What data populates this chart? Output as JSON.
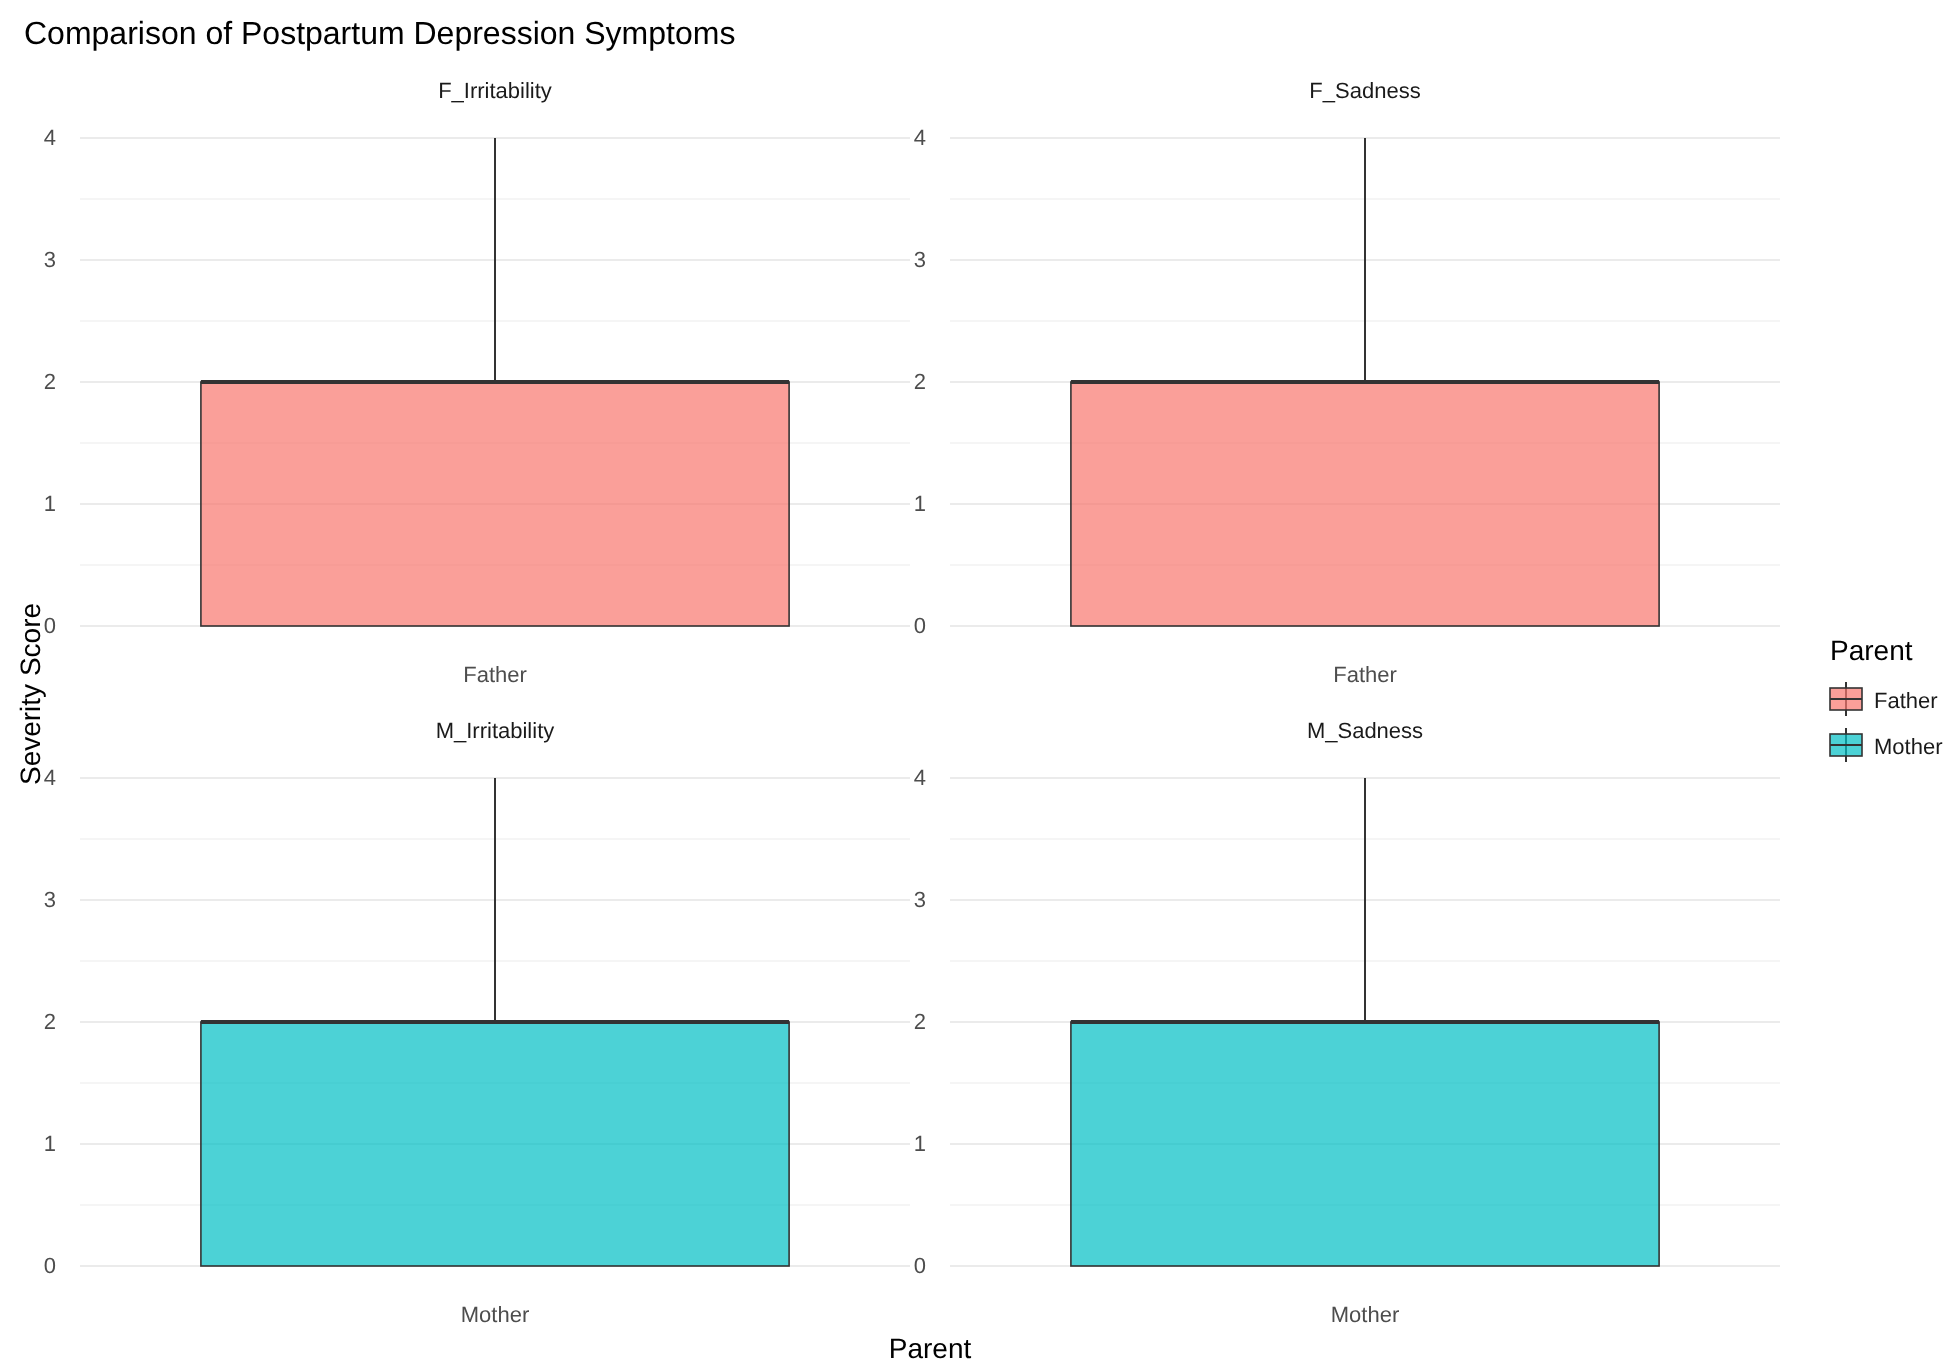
{
  "chart_data": [
    {
      "type": "box",
      "title": "Comparison of Postpartum Depression Symptoms",
      "subtitle": "F_Irritability",
      "ylabel": "Severity Score",
      "legend_title": "Parent",
      "legend": "right",
      "categories": [
        "Father"
      ],
      "series": [
        {
          "name": "Father",
          "color": "#f8766d",
          "boxes": [
            {
              "low": 0,
              "q1": 0,
              "median": 2,
              "q3": 2,
              "high": 4
            }
          ]
        }
      ],
      "ylim": [
        0,
        4
      ],
      "yticks": [
        0,
        {
          "value": 0.5,
          "label": null
        },
        1,
        {
          "value": 1.5,
          "label": null
        },
        2,
        {
          "value": 2.5,
          "label": null
        },
        3,
        {
          "value": 3.5,
          "label": null
        },
        4
      ],
      "grid": "y"
    },
    {
      "type": "box",
      "subtitle": "F_Sadness",
      "categories": [
        "Father"
      ],
      "series": [
        {
          "name": "Father",
          "color": "#f8766d",
          "boxes": [
            {
              "low": 0,
              "q1": 0,
              "median": 2,
              "q3": 2,
              "high": 4
            }
          ]
        }
      ],
      "ylim": [
        0,
        4
      ],
      "yticks": [
        0,
        {
          "value": 0.5,
          "label": null
        },
        1,
        {
          "value": 1.5,
          "label": null
        },
        2,
        {
          "value": 2.5,
          "label": null
        },
        3,
        {
          "value": 3.5,
          "label": null
        },
        4
      ],
      "grid": "y"
    },
    {
      "type": "box",
      "subtitle": "M_Irritability",
      "xlabel": "Parent",
      "categories": [
        "Mother"
      ],
      "series": [
        {
          "name": "Mother",
          "color": "#00bfc4",
          "boxes": [
            {
              "low": 0,
              "q1": 0,
              "median": 2,
              "q3": 2,
              "high": 4
            }
          ]
        }
      ],
      "ylim": [
        0,
        4
      ],
      "yticks": [
        0,
        {
          "value": 0.5,
          "label": null
        },
        1,
        {
          "value": 1.5,
          "label": null
        },
        2,
        {
          "value": 2.5,
          "label": null
        },
        3,
        {
          "value": 3.5,
          "label": null
        },
        4
      ],
      "grid": "y"
    },
    {
      "type": "box",
      "subtitle": "M_Sadness",
      "categories": [
        "Mother"
      ],
      "series": [
        {
          "name": "Mother",
          "color": "#00bfc4",
          "boxes": [
            {
              "low": 0,
              "q1": 0,
              "median": 2,
              "q3": 2,
              "high": 4
            }
          ]
        }
      ],
      "ylim": [
        0,
        4
      ],
      "yticks": [
        0,
        {
          "value": 0.5,
          "label": null
        },
        1,
        {
          "value": 1.5,
          "label": null
        },
        2,
        {
          "value": 2.5,
          "label": null
        },
        3,
        {
          "value": 3.5,
          "label": null
        },
        4
      ],
      "grid": "y"
    }
  ]
}
